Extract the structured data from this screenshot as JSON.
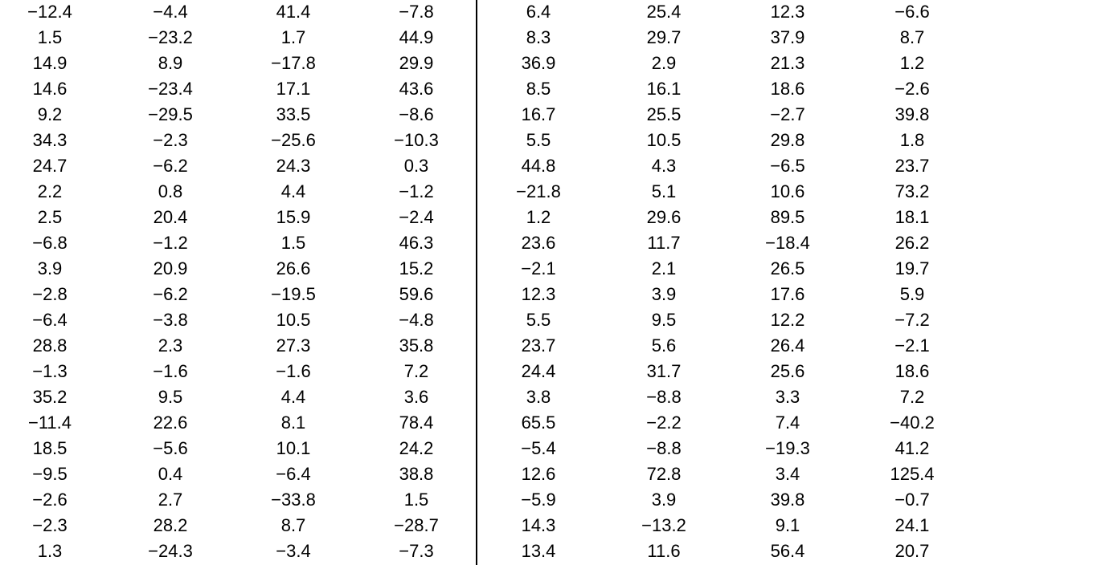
{
  "table": {
    "rows": [
      [
        "−12.4",
        "−4.4",
        "41.4",
        "−7.8",
        "6.4",
        "25.4",
        "12.3",
        "−6.6"
      ],
      [
        "1.5",
        "−23.2",
        "1.7",
        "44.9",
        "8.3",
        "29.7",
        "37.9",
        "8.7"
      ],
      [
        "14.9",
        "8.9",
        "−17.8",
        "29.9",
        "36.9",
        "2.9",
        "21.3",
        "1.2"
      ],
      [
        "14.6",
        "−23.4",
        "17.1",
        "43.6",
        "8.5",
        "16.1",
        "18.6",
        "−2.6"
      ],
      [
        "9.2",
        "−29.5",
        "33.5",
        "−8.6",
        "16.7",
        "25.5",
        "−2.7",
        "39.8"
      ],
      [
        "34.3",
        "−2.3",
        "−25.6",
        "−10.3",
        "5.5",
        "10.5",
        "29.8",
        "1.8"
      ],
      [
        "24.7",
        "−6.2",
        "24.3",
        "0.3",
        "44.8",
        "4.3",
        "−6.5",
        "23.7"
      ],
      [
        "2.2",
        "0.8",
        "4.4",
        "−1.2",
        "−21.8",
        "5.1",
        "10.6",
        "73.2"
      ],
      [
        "2.5",
        "20.4",
        "15.9",
        "−2.4",
        "1.2",
        "29.6",
        "89.5",
        "18.1"
      ],
      [
        "−6.8",
        "−1.2",
        "1.5",
        "46.3",
        "23.6",
        "11.7",
        "−18.4",
        "26.2"
      ],
      [
        "3.9",
        "20.9",
        "26.6",
        "15.2",
        "−2.1",
        "2.1",
        "26.5",
        "19.7"
      ],
      [
        "−2.8",
        "−6.2",
        "−19.5",
        "59.6",
        "12.3",
        "3.9",
        "17.6",
        "5.9"
      ],
      [
        "−6.4",
        "−3.8",
        "10.5",
        "−4.8",
        "5.5",
        "9.5",
        "12.2",
        "−7.2"
      ],
      [
        "28.8",
        "2.3",
        "27.3",
        "35.8",
        "23.7",
        "5.6",
        "26.4",
        "−2.1"
      ],
      [
        "−1.3",
        "−1.6",
        "−1.6",
        "7.2",
        "24.4",
        "31.7",
        "25.6",
        "18.6"
      ],
      [
        "35.2",
        "9.5",
        "4.4",
        "3.6",
        "3.8",
        "−8.8",
        "3.3",
        "7.2"
      ],
      [
        "−11.4",
        "22.6",
        "8.1",
        "78.4",
        "65.5",
        "−2.2",
        "7.4",
        "−40.2"
      ],
      [
        "18.5",
        "−5.6",
        "10.1",
        "24.2",
        "−5.4",
        "−8.8",
        "−19.3",
        "41.2"
      ],
      [
        "−9.5",
        "0.4",
        "−6.4",
        "38.8",
        "12.6",
        "72.8",
        "3.4",
        "125.4"
      ],
      [
        "−2.6",
        "2.7",
        "−33.8",
        "1.5",
        "−5.9",
        "3.9",
        "39.8",
        "−0.7"
      ],
      [
        "−2.3",
        "28.2",
        "8.7",
        "−28.7",
        "14.3",
        "−13.2",
        "9.1",
        "24.1"
      ],
      [
        "1.3",
        "−24.3",
        "−3.4",
        "−7.3",
        "13.4",
        "11.6",
        "56.4",
        "20.7"
      ]
    ]
  }
}
